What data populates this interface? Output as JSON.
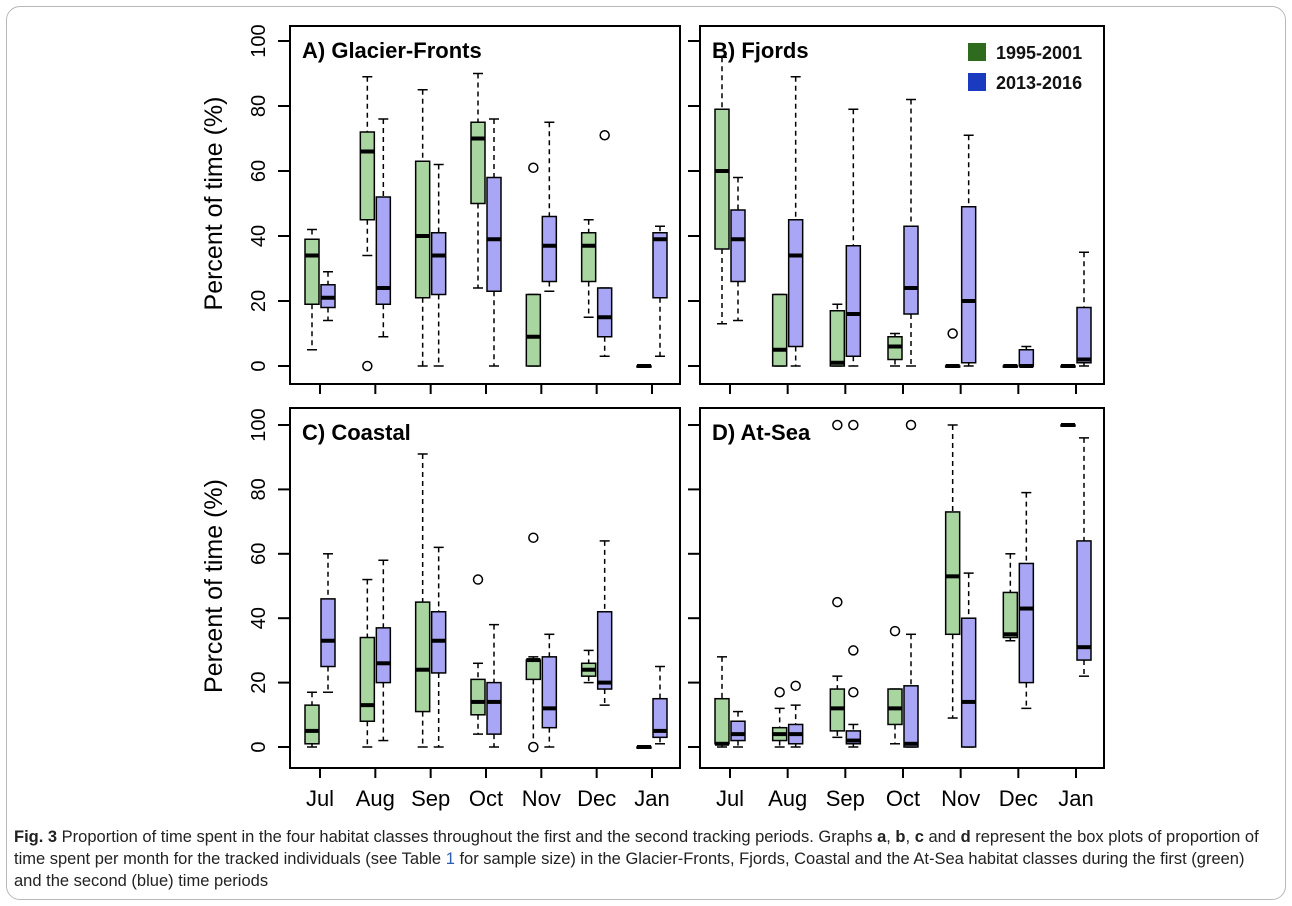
{
  "colors": {
    "green": "#2e6b1e",
    "green_fill": "#a8d5a0",
    "blue": "#1a3bbf",
    "blue_fill": "#a9a7f5"
  },
  "legend": [
    {
      "label": "1995-2001",
      "color": "#2e6b1e"
    },
    {
      "label": "2013-2016",
      "color": "#1a3bbf"
    }
  ],
  "caption": {
    "label": "Fig. 3",
    "text_1": " Proportion of time spent in the four habitat classes throughout the first and the second tracking periods. Graphs ",
    "a": "a",
    "sep1": ", ",
    "b": "b",
    "sep2": ", ",
    "c": "c",
    "and": " and ",
    "d": "d",
    "text_2": " represent the box plots of proportion of time spent per month for the tracked individuals (see Table ",
    "table_ref": "1",
    "text_3": " for sample size) in the Glacier-Fronts, Fjords, Coastal and the At-Sea habitat classes during the first (green) and the second (blue) time periods"
  },
  "chart_data": [
    {
      "panel": "A",
      "title": "A) Glacier-Fronts",
      "type": "box",
      "ylabel": "Percent of time (%)",
      "ylim": [
        0,
        100
      ],
      "yticks": [
        "0",
        "20",
        "40",
        "60",
        "80",
        "100"
      ],
      "categories": [
        "Jul",
        "Aug",
        "Sep",
        "Oct",
        "Nov",
        "Dec",
        "Jan"
      ],
      "show_xtick_labels": false,
      "series": [
        {
          "name": "1995-2001",
          "boxes": [
            {
              "low": 5,
              "q1": 19,
              "med": 34,
              "q3": 39,
              "high": 42,
              "outliers": []
            },
            {
              "low": 34,
              "q1": 45,
              "med": 66,
              "q3": 72,
              "high": 89,
              "outliers": [
                0
              ]
            },
            {
              "low": 0,
              "q1": 21,
              "med": 40,
              "q3": 63,
              "high": 85,
              "outliers": []
            },
            {
              "low": 24,
              "q1": 50,
              "med": 70,
              "q3": 75,
              "high": 90,
              "outliers": []
            },
            {
              "low": 0,
              "q1": 0,
              "med": 9,
              "q3": 22,
              "high": 22,
              "outliers": [
                61
              ]
            },
            {
              "low": 15,
              "q1": 26,
              "med": 37,
              "q3": 41,
              "high": 45,
              "outliers": []
            },
            {
              "low": 0,
              "q1": 0,
              "med": 0,
              "q3": 0,
              "high": 0,
              "outliers": []
            }
          ]
        },
        {
          "name": "2013-2016",
          "boxes": [
            {
              "low": 14,
              "q1": 18,
              "med": 21,
              "q3": 25,
              "high": 29,
              "outliers": []
            },
            {
              "low": 9,
              "q1": 19,
              "med": 24,
              "q3": 52,
              "high": 76,
              "outliers": []
            },
            {
              "low": 0,
              "q1": 22,
              "med": 34,
              "q3": 41,
              "high": 62,
              "outliers": []
            },
            {
              "low": 0,
              "q1": 23,
              "med": 39,
              "q3": 58,
              "high": 76,
              "outliers": []
            },
            {
              "low": 23,
              "q1": 26,
              "med": 37,
              "q3": 46,
              "high": 75,
              "outliers": []
            },
            {
              "low": 3,
              "q1": 9,
              "med": 15,
              "q3": 24,
              "high": 24,
              "outliers": [
                71
              ]
            },
            {
              "low": 3,
              "q1": 21,
              "med": 39,
              "q3": 41,
              "high": 43,
              "outliers": []
            }
          ]
        }
      ]
    },
    {
      "panel": "B",
      "title": "B) Fjords",
      "type": "box",
      "ylabel": "",
      "ylim": [
        0,
        100
      ],
      "yticks": [],
      "categories": [
        "Jul",
        "Aug",
        "Sep",
        "Oct",
        "Nov",
        "Dec",
        "Jan"
      ],
      "show_xtick_labels": false,
      "series": [
        {
          "name": "1995-2001",
          "boxes": [
            {
              "low": 13,
              "q1": 36,
              "med": 60,
              "q3": 79,
              "high": 95,
              "outliers": []
            },
            {
              "low": 0,
              "q1": 0,
              "med": 5,
              "q3": 22,
              "high": 22,
              "outliers": []
            },
            {
              "low": 0,
              "q1": 0,
              "med": 1,
              "q3": 17,
              "high": 19,
              "outliers": []
            },
            {
              "low": 0,
              "q1": 2,
              "med": 6,
              "q3": 9,
              "high": 10,
              "outliers": []
            },
            {
              "low": 0,
              "q1": 0,
              "med": 0,
              "q3": 0,
              "high": 0,
              "outliers": [
                10
              ]
            },
            {
              "low": 0,
              "q1": 0,
              "med": 0,
              "q3": 0,
              "high": 0,
              "outliers": []
            },
            {
              "low": 0,
              "q1": 0,
              "med": 0,
              "q3": 0,
              "high": 0,
              "outliers": []
            }
          ]
        },
        {
          "name": "2013-2016",
          "boxes": [
            {
              "low": 14,
              "q1": 26,
              "med": 39,
              "q3": 48,
              "high": 58,
              "outliers": []
            },
            {
              "low": 0,
              "q1": 6,
              "med": 34,
              "q3": 45,
              "high": 89,
              "outliers": []
            },
            {
              "low": 0,
              "q1": 3,
              "med": 16,
              "q3": 37,
              "high": 79,
              "outliers": []
            },
            {
              "low": 0,
              "q1": 16,
              "med": 24,
              "q3": 43,
              "high": 82,
              "outliers": []
            },
            {
              "low": 0,
              "q1": 1,
              "med": 20,
              "q3": 49,
              "high": 71,
              "outliers": []
            },
            {
              "low": 0,
              "q1": 0,
              "med": 0,
              "q3": 5,
              "high": 6,
              "outliers": []
            },
            {
              "low": 0,
              "q1": 1,
              "med": 2,
              "q3": 18,
              "high": 35,
              "outliers": []
            }
          ]
        }
      ]
    },
    {
      "panel": "C",
      "title": "C) Coastal",
      "type": "box",
      "ylabel": "Percent of time (%)",
      "ylim": [
        0,
        100
      ],
      "yticks": [
        "0",
        "20",
        "40",
        "60",
        "80",
        "100"
      ],
      "categories": [
        "Jul",
        "Aug",
        "Sep",
        "Oct",
        "Nov",
        "Dec",
        "Jan"
      ],
      "show_xtick_labels": true,
      "series": [
        {
          "name": "1995-2001",
          "boxes": [
            {
              "low": 0,
              "q1": 1,
              "med": 5,
              "q3": 13,
              "high": 17,
              "outliers": []
            },
            {
              "low": 0,
              "q1": 8,
              "med": 13,
              "q3": 34,
              "high": 52,
              "outliers": []
            },
            {
              "low": 0,
              "q1": 11,
              "med": 24,
              "q3": 45,
              "high": 91,
              "outliers": []
            },
            {
              "low": 4,
              "q1": 10,
              "med": 14,
              "q3": 21,
              "high": 26,
              "outliers": [
                52
              ]
            },
            {
              "low": 0,
              "q1": 21,
              "med": 27,
              "q3": 27,
              "high": 28,
              "outliers": [
                65,
                0
              ]
            },
            {
              "low": 20,
              "q1": 22,
              "med": 24,
              "q3": 26,
              "high": 30,
              "outliers": []
            },
            {
              "low": 0,
              "q1": 0,
              "med": 0,
              "q3": 0,
              "high": 0,
              "outliers": []
            }
          ]
        },
        {
          "name": "2013-2016",
          "boxes": [
            {
              "low": 17,
              "q1": 25,
              "med": 33,
              "q3": 46,
              "high": 60,
              "outliers": []
            },
            {
              "low": 2,
              "q1": 20,
              "med": 26,
              "q3": 37,
              "high": 58,
              "outliers": []
            },
            {
              "low": 0,
              "q1": 23,
              "med": 33,
              "q3": 42,
              "high": 62,
              "outliers": []
            },
            {
              "low": 0,
              "q1": 4,
              "med": 14,
              "q3": 20,
              "high": 38,
              "outliers": []
            },
            {
              "low": 0,
              "q1": 6,
              "med": 12,
              "q3": 28,
              "high": 35,
              "outliers": []
            },
            {
              "low": 13,
              "q1": 18,
              "med": 20,
              "q3": 42,
              "high": 64,
              "outliers": []
            },
            {
              "low": 1,
              "q1": 3,
              "med": 5,
              "q3": 15,
              "high": 25,
              "outliers": []
            }
          ]
        }
      ]
    },
    {
      "panel": "D",
      "title": "D) At-Sea",
      "type": "box",
      "ylabel": "",
      "ylim": [
        0,
        100
      ],
      "yticks": [],
      "categories": [
        "Jul",
        "Aug",
        "Sep",
        "Oct",
        "Nov",
        "Dec",
        "Jan"
      ],
      "show_xtick_labels": true,
      "series": [
        {
          "name": "1995-2001",
          "boxes": [
            {
              "low": 0,
              "q1": 1,
              "med": 1,
              "q3": 15,
              "high": 28,
              "outliers": []
            },
            {
              "low": 0,
              "q1": 2,
              "med": 4,
              "q3": 6,
              "high": 12,
              "outliers": [
                17
              ]
            },
            {
              "low": 3,
              "q1": 5,
              "med": 12,
              "q3": 18,
              "high": 22,
              "outliers": [
                45,
                100
              ]
            },
            {
              "low": 1,
              "q1": 7,
              "med": 12,
              "q3": 18,
              "high": 18,
              "outliers": [
                36
              ]
            },
            {
              "low": 9,
              "q1": 35,
              "med": 53,
              "q3": 73,
              "high": 100,
              "outliers": []
            },
            {
              "low": 33,
              "q1": 34,
              "med": 35,
              "q3": 48,
              "high": 60,
              "outliers": []
            },
            {
              "low": 100,
              "q1": 100,
              "med": 100,
              "q3": 100,
              "high": 100,
              "outliers": []
            }
          ]
        },
        {
          "name": "2013-2016",
          "boxes": [
            {
              "low": 0,
              "q1": 2,
              "med": 4,
              "q3": 8,
              "high": 11,
              "outliers": []
            },
            {
              "low": 0,
              "q1": 1,
              "med": 4,
              "q3": 7,
              "high": 13,
              "outliers": [
                19
              ]
            },
            {
              "low": 0,
              "q1": 1,
              "med": 2,
              "q3": 5,
              "high": 7,
              "outliers": [
                17,
                30,
                100
              ]
            },
            {
              "low": 0,
              "q1": 0,
              "med": 1,
              "q3": 19,
              "high": 35,
              "outliers": [
                100
              ]
            },
            {
              "low": 0,
              "q1": 0,
              "med": 14,
              "q3": 40,
              "high": 54,
              "outliers": []
            },
            {
              "low": 12,
              "q1": 20,
              "med": 43,
              "q3": 57,
              "high": 79,
              "outliers": []
            },
            {
              "low": 22,
              "q1": 27,
              "med": 31,
              "q3": 64,
              "high": 96,
              "outliers": []
            }
          ]
        }
      ]
    }
  ]
}
